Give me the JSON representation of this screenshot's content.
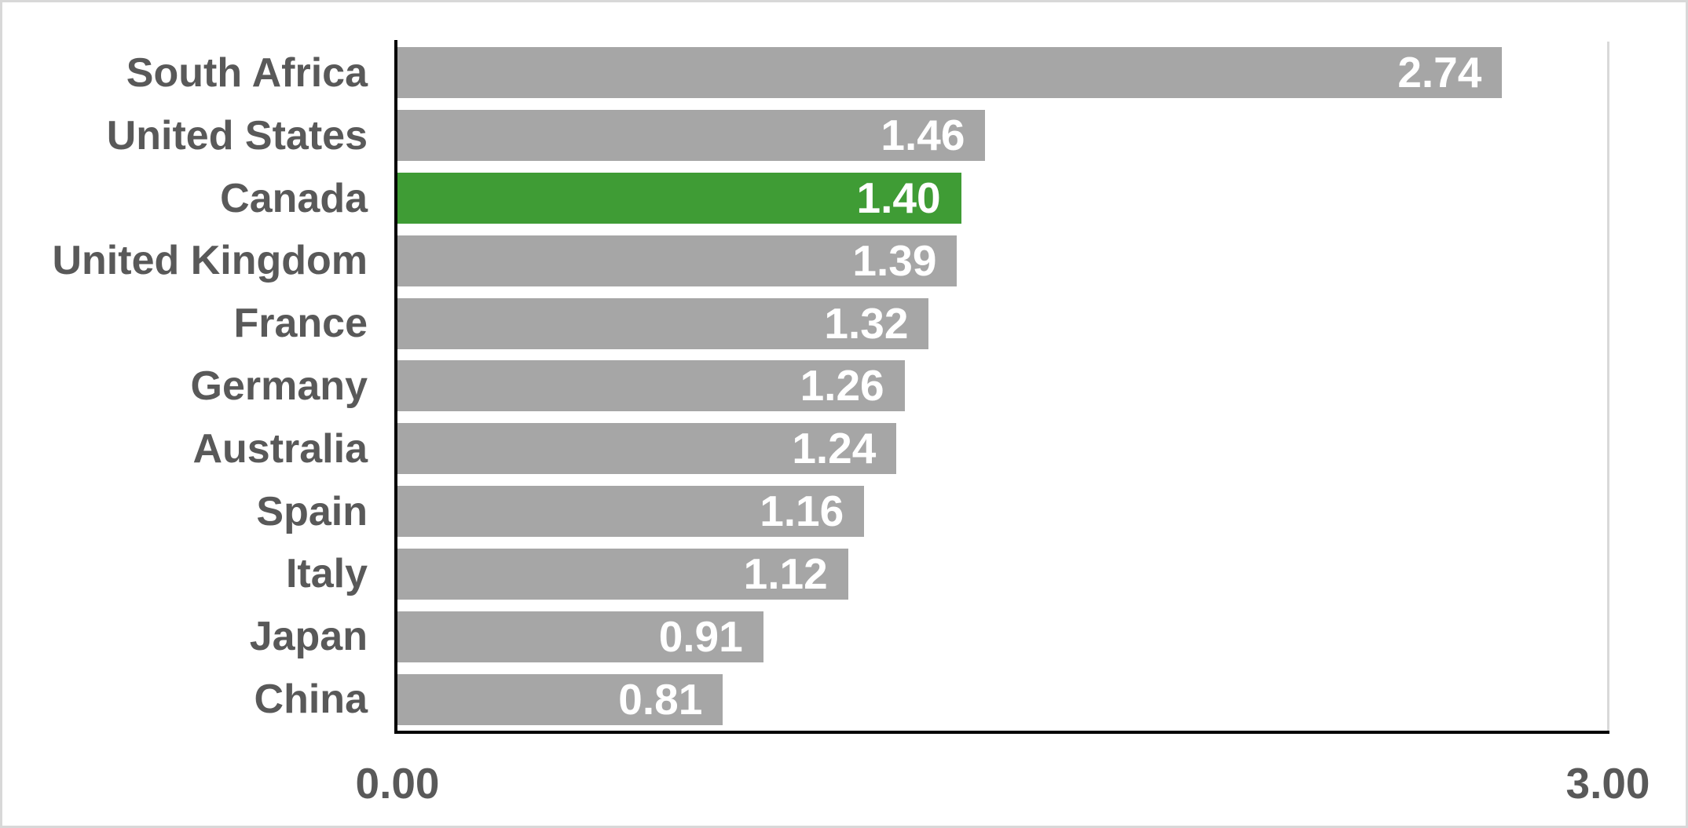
{
  "chart_data": {
    "type": "bar",
    "orientation": "horizontal",
    "title": "",
    "xlabel": "",
    "ylabel": "",
    "categories": [
      "South Africa",
      "United States",
      "Canada",
      "United Kingdom",
      "France",
      "Germany",
      "Australia",
      "Spain",
      "Italy",
      "Japan",
      "China"
    ],
    "values": [
      2.74,
      1.46,
      1.4,
      1.39,
      1.32,
      1.26,
      1.24,
      1.16,
      1.12,
      0.91,
      0.81
    ],
    "value_labels": [
      "2.74",
      "1.46",
      "1.40",
      "1.39",
      "1.32",
      "1.26",
      "1.24",
      "1.16",
      "1.12",
      "0.91",
      "0.81"
    ],
    "highlight_index": 2,
    "highlight_category": "Canada",
    "xlim": [
      0,
      3
    ],
    "x_ticks": [
      "0.00",
      "3.00"
    ],
    "legend": "none",
    "grid": "right-edge-line-only",
    "colors": {
      "bar": "#A6A6A6",
      "highlight": "#3F9C35",
      "value_label": "#FFFFFF",
      "category_label": "#595959",
      "tick_label": "#595959",
      "axis_line": "#000000",
      "right_gridline": "#D9D9D9",
      "frame_border": "#D8D8D8",
      "background": "#FFFFFF"
    }
  }
}
